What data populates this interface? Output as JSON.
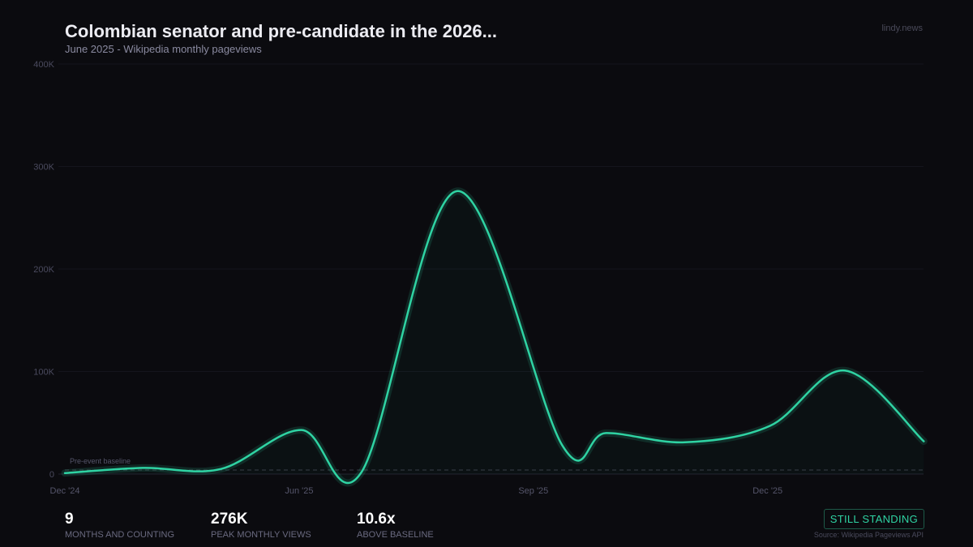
{
  "header": {
    "title": "Colombian senator and pre-candidate in the 2026...",
    "subtitle": "June 2025  -  Wikipedia monthly pageviews",
    "brand": "lindy.news"
  },
  "chart_data": {
    "type": "line",
    "title": "Colombian senator and pre-candidate in the 2026...",
    "ylabel": "",
    "xlabel": "",
    "ylim": [
      0,
      400000
    ],
    "yticks": [
      {
        "v": 0,
        "label": "0"
      },
      {
        "v": 100000,
        "label": "100K"
      },
      {
        "v": 200000,
        "label": "200K"
      },
      {
        "v": 300000,
        "label": "300K"
      },
      {
        "v": 400000,
        "label": "400K"
      }
    ],
    "xticks": [
      {
        "i": 0,
        "label": "Dec '24"
      },
      {
        "i": 3,
        "label": "Jun '25"
      },
      {
        "i": 6,
        "label": "Sep '25"
      },
      {
        "i": 9,
        "label": "Dec '25"
      }
    ],
    "grid": true,
    "baseline": {
      "value": 4000,
      "label": "Pre-event baseline"
    },
    "points": [
      [
        0,
        1000
      ],
      [
        1,
        6000
      ],
      [
        2,
        5000
      ],
      [
        3.03,
        43000
      ],
      [
        3.8,
        2000
      ],
      [
        5.02,
        276000
      ],
      [
        6.37,
        28000
      ],
      [
        6.93,
        40000
      ],
      [
        7.94,
        31000
      ],
      [
        9.03,
        47000
      ],
      [
        9.99,
        101000
      ],
      [
        11,
        32000
      ]
    ],
    "line_color": "#2fd3a3"
  },
  "stats": [
    {
      "value": "9",
      "label": "MONTHS AND COUNTING"
    },
    {
      "value": "276K",
      "label": "PEAK MONTHLY VIEWS"
    },
    {
      "value": "10.6x",
      "label": "ABOVE BASELINE"
    }
  ],
  "badge": "STILL STANDING",
  "source": "Source: Wikipedia Pageviews API"
}
